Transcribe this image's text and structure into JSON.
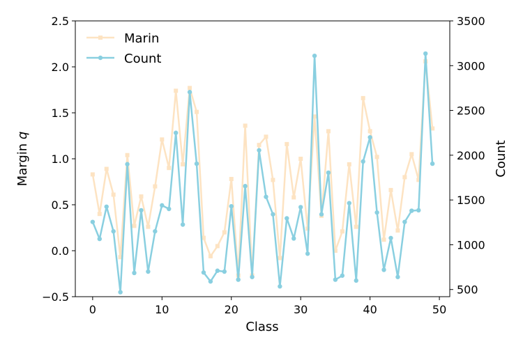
{
  "chart_data": {
    "type": "line",
    "xlabel": "Class",
    "ylabel_left": "Margin q",
    "ylabel_left_parts": [
      "Margin ",
      "q"
    ],
    "ylabel_right": "Count",
    "xlim": [
      -2.5,
      51.5
    ],
    "ylim_left": [
      -0.5,
      2.5
    ],
    "ylim_right": [
      420,
      3500
    ],
    "xticks": [
      0,
      10,
      20,
      30,
      40,
      50
    ],
    "yticks_left": [
      -0.5,
      0.0,
      0.5,
      1.0,
      1.5,
      2.0,
      2.5
    ],
    "yticks_right": [
      500,
      1000,
      1500,
      2000,
      2500,
      3000,
      3500
    ],
    "grid": false,
    "legend_position": "top-left",
    "series": [
      {
        "name": "Marin",
        "axis": "left",
        "color": "#fde3c2",
        "marker": "square",
        "x": [
          0,
          1,
          2,
          3,
          4,
          5,
          6,
          7,
          8,
          9,
          10,
          11,
          12,
          13,
          14,
          15,
          16,
          17,
          18,
          19,
          20,
          21,
          22,
          23,
          24,
          25,
          26,
          27,
          28,
          29,
          30,
          31,
          32,
          33,
          34,
          35,
          36,
          37,
          38,
          39,
          40,
          41,
          42,
          43,
          44,
          45,
          46,
          47,
          48,
          49
        ],
        "values": [
          0.83,
          0.4,
          0.89,
          0.61,
          -0.07,
          1.04,
          0.27,
          0.59,
          0.26,
          0.7,
          1.21,
          0.9,
          1.74,
          0.94,
          1.77,
          1.51,
          0.14,
          -0.06,
          0.05,
          0.2,
          0.78,
          -0.27,
          1.36,
          -0.27,
          1.15,
          1.24,
          0.77,
          -0.08,
          1.16,
          0.58,
          1.0,
          0.24,
          1.46,
          0.38,
          1.3,
          0.0,
          0.21,
          0.94,
          0.26,
          1.66,
          1.3,
          1.02,
          0.12,
          0.66,
          0.22,
          0.8,
          1.05,
          0.77,
          2.06,
          1.33
        ]
      },
      {
        "name": "Count",
        "axis": "right",
        "color": "#89cfe0",
        "marker": "circle",
        "x": [
          0,
          1,
          2,
          3,
          4,
          5,
          6,
          7,
          8,
          9,
          10,
          11,
          12,
          13,
          14,
          15,
          16,
          17,
          18,
          19,
          20,
          21,
          22,
          23,
          24,
          25,
          26,
          27,
          28,
          29,
          30,
          31,
          32,
          33,
          34,
          35,
          36,
          37,
          38,
          39,
          40,
          41,
          42,
          43,
          44,
          45,
          46,
          47,
          48,
          49
        ],
        "values": [
          1255,
          1065,
          1425,
          1150,
          470,
          1900,
          685,
          1385,
          700,
          1150,
          1440,
          1400,
          2250,
          1225,
          2705,
          1905,
          690,
          590,
          710,
          700,
          1430,
          610,
          1655,
          640,
          2055,
          1535,
          1340,
          535,
          1295,
          1070,
          1420,
          900,
          3110,
          1340,
          1805,
          610,
          655,
          1465,
          600,
          1930,
          2200,
          1360,
          720,
          1075,
          640,
          1255,
          1380,
          1385,
          3135,
          1905
        ]
      }
    ]
  }
}
